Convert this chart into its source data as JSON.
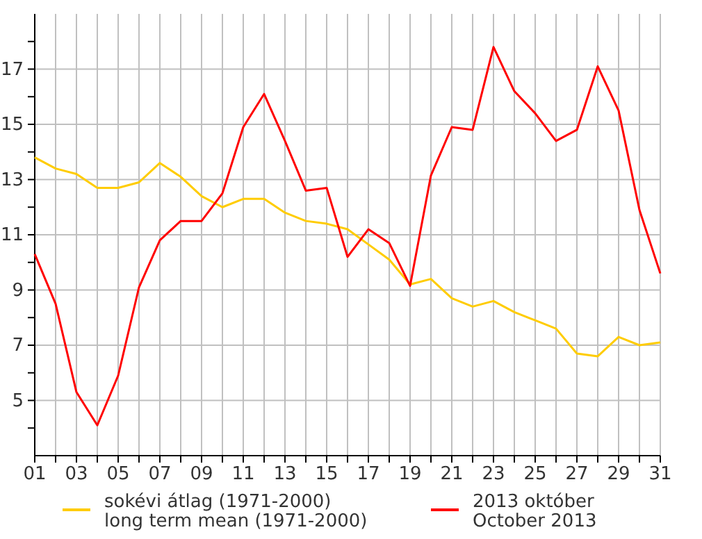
{
  "chart_data": {
    "type": "line",
    "x": [
      1,
      2,
      3,
      4,
      5,
      6,
      7,
      8,
      9,
      10,
      11,
      12,
      13,
      14,
      15,
      16,
      17,
      18,
      19,
      20,
      21,
      22,
      23,
      24,
      25,
      26,
      27,
      28,
      29,
      30,
      31
    ],
    "xlim": [
      1,
      31
    ],
    "xticks": [
      {
        "value": 1,
        "label": "01"
      },
      {
        "value": 2,
        "label": null
      },
      {
        "value": 3,
        "label": "03"
      },
      {
        "value": 4,
        "label": null
      },
      {
        "value": 5,
        "label": "05"
      },
      {
        "value": 6,
        "label": null
      },
      {
        "value": 7,
        "label": "07"
      },
      {
        "value": 8,
        "label": null
      },
      {
        "value": 9,
        "label": "09"
      },
      {
        "value": 10,
        "label": null
      },
      {
        "value": 11,
        "label": "11"
      },
      {
        "value": 12,
        "label": null
      },
      {
        "value": 13,
        "label": "13"
      },
      {
        "value": 14,
        "label": null
      },
      {
        "value": 15,
        "label": "15"
      },
      {
        "value": 16,
        "label": null
      },
      {
        "value": 17,
        "label": "17"
      },
      {
        "value": 18,
        "label": null
      },
      {
        "value": 19,
        "label": "19"
      },
      {
        "value": 20,
        "label": null
      },
      {
        "value": 21,
        "label": "21"
      },
      {
        "value": 22,
        "label": null
      },
      {
        "value": 23,
        "label": "23"
      },
      {
        "value": 24,
        "label": null
      },
      {
        "value": 25,
        "label": "25"
      },
      {
        "value": 26,
        "label": null
      },
      {
        "value": 27,
        "label": "27"
      },
      {
        "value": 28,
        "label": null
      },
      {
        "value": 29,
        "label": "29"
      },
      {
        "value": 30,
        "label": null
      },
      {
        "value": 31,
        "label": "31"
      }
    ],
    "ylim": [
      3,
      19
    ],
    "yticks": [
      {
        "value": 4,
        "label": null
      },
      5,
      {
        "value": 6,
        "label": null
      },
      7,
      {
        "value": 8,
        "label": null
      },
      9,
      {
        "value": 10,
        "label": null
      },
      11,
      {
        "value": 12,
        "label": null
      },
      13,
      {
        "value": 14,
        "label": null
      },
      15,
      {
        "value": 16,
        "label": null
      },
      17,
      {
        "value": 18,
        "label": null
      }
    ],
    "grid": true,
    "legend": "bottom",
    "marker": "none",
    "line_style": "solid",
    "series": [
      {
        "name": "sokévi átlag (1971-2000)\nlong term mean (1971-2000)",
        "color": "#ffcc00",
        "values": [
          13.8,
          13.4,
          13.2,
          12.7,
          12.7,
          12.9,
          13.6,
          13.1,
          12.4,
          12.0,
          12.3,
          12.3,
          11.8,
          11.5,
          11.4,
          11.2,
          10.65,
          10.1,
          9.2,
          9.4,
          8.7,
          8.4,
          8.6,
          8.2,
          7.9,
          7.6,
          6.7,
          6.6,
          7.3,
          7.0,
          7.1
        ]
      },
      {
        "name": "2013 október\nOctober 2013",
        "color": "#ff0000",
        "values": [
          10.3,
          8.5,
          5.3,
          4.1,
          5.9,
          9.1,
          10.8,
          11.5,
          11.5,
          12.5,
          14.9,
          16.1,
          14.4,
          12.6,
          12.7,
          10.2,
          11.2,
          10.7,
          9.15,
          13.15,
          14.9,
          14.8,
          17.8,
          16.2,
          15.4,
          14.4,
          14.8,
          17.1,
          15.5,
          11.9,
          9.6
        ]
      }
    ]
  }
}
